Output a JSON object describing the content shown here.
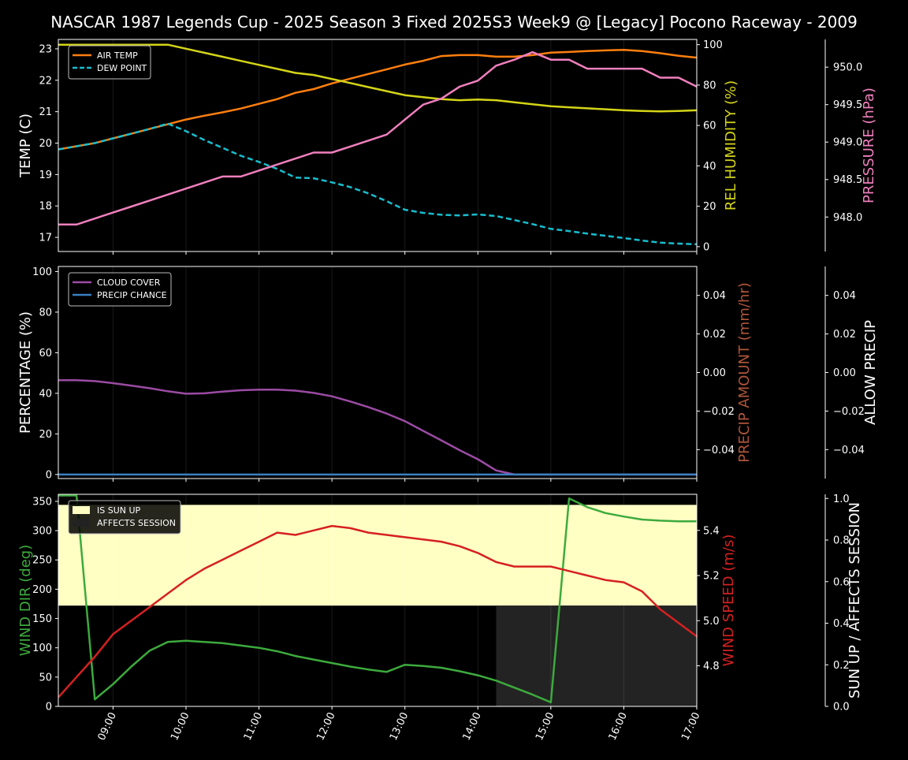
{
  "chart_data": {
    "title": "NASCAR 1987 Legends Cup  - 2025 Season 3 Fixed 2025S3 Week9 @ [Legacy] Pocono Raceway - 2009",
    "x_ticks": [
      "09:00",
      "10:00",
      "11:00",
      "12:00",
      "13:00",
      "14:00",
      "15:00",
      "16:00",
      "17:00"
    ],
    "x_range": [
      8.25,
      17.0
    ],
    "time_hours": [
      8.25,
      8.5,
      8.75,
      9.0,
      9.25,
      9.5,
      9.75,
      10.0,
      10.25,
      10.5,
      10.75,
      11.0,
      11.25,
      11.5,
      11.75,
      12.0,
      12.25,
      12.5,
      12.75,
      13.0,
      13.25,
      13.5,
      13.75,
      14.0,
      14.25,
      14.5,
      14.75,
      15.0,
      15.25,
      15.5,
      15.75,
      16.0,
      16.25,
      16.5,
      16.75,
      17.0
    ],
    "panels": [
      {
        "type": "line",
        "ylabel": "TEMP (C)",
        "ylabel_color": "#ffffff",
        "ylim": [
          16.55,
          23.3
        ],
        "y_ticks": [
          "17",
          "18",
          "19",
          "20",
          "21",
          "22",
          "23"
        ],
        "legend": "top-left",
        "series": [
          {
            "name": "AIR TEMP",
            "color": "#ff7f0e",
            "dash": false,
            "axis": "left",
            "values": [
              19.8,
              19.9,
              20.0,
              20.15,
              20.3,
              20.45,
              20.6,
              20.75,
              20.87,
              20.98,
              21.1,
              21.25,
              21.4,
              21.6,
              21.72,
              21.9,
              22.05,
              22.2,
              22.35,
              22.5,
              22.62,
              22.77,
              22.8,
              22.8,
              22.75,
              22.75,
              22.8,
              22.88,
              22.9,
              22.93,
              22.95,
              22.97,
              22.93,
              22.86,
              22.78,
              22.72
            ]
          },
          {
            "name": "DEW POINT",
            "color": "#17becf",
            "dash": true,
            "axis": "left",
            "values": [
              19.8,
              19.9,
              20.0,
              20.15,
              20.3,
              20.45,
              20.62,
              20.38,
              20.1,
              19.85,
              19.6,
              19.4,
              19.18,
              18.9,
              18.88,
              18.75,
              18.6,
              18.4,
              18.15,
              17.88,
              17.78,
              17.72,
              17.7,
              17.73,
              17.68,
              17.55,
              17.42,
              17.27,
              17.2,
              17.12,
              17.05,
              16.98,
              16.9,
              16.83,
              16.8,
              16.78
            ]
          },
          {
            "name": "REL HUMIDITY",
            "color": "#d4d418",
            "dash": false,
            "axis": "right1",
            "values": [
              100,
              100,
              100,
              100,
              100,
              100,
              100,
              98,
              96,
              94,
              92,
              90,
              88,
              86,
              85,
              83,
              81,
              79,
              77,
              75,
              74,
              73,
              72.5,
              72.8,
              72.5,
              71.5,
              70.5,
              69.5,
              69,
              68.5,
              68,
              67.5,
              67.2,
              67,
              67.2,
              67.5
            ]
          },
          {
            "name": "PRESSURE",
            "color": "#f07fbd",
            "dash": false,
            "axis": "right2",
            "values": [
              947.9,
              947.9,
              947.98,
              948.06,
              948.14,
              948.22,
              948.3,
              948.38,
              948.46,
              948.54,
              948.54,
              948.62,
              948.7,
              948.78,
              948.86,
              948.86,
              948.94,
              949.02,
              949.1,
              949.3,
              949.5,
              949.58,
              949.74,
              949.82,
              950.02,
              950.1,
              950.2,
              950.1,
              950.1,
              949.98,
              949.98,
              949.98,
              949.98,
              949.86,
              949.86,
              949.74
            ]
          }
        ],
        "right_axes": [
          {
            "label": "REL HUMIDITY (%)",
            "color": "#d4d418",
            "ylim": [
              -2.4,
              102.6
            ],
            "ticks": [
              "0",
              "20",
              "40",
              "60",
              "80",
              "100"
            ]
          },
          {
            "label": "PRESSURE (hPa)",
            "color": "#f07fbd",
            "ylim": [
              947.54,
              950.37
            ],
            "ticks": [
              "948.0",
              "948.5",
              "949.0",
              "949.5",
              "950.0"
            ]
          }
        ]
      },
      {
        "type": "line",
        "ylabel": "PERCENTAGE (%)",
        "ylabel_color": "#ffffff",
        "ylim": [
          -2.0,
          102.5
        ],
        "y_ticks": [
          "0",
          "20",
          "40",
          "60",
          "80",
          "100"
        ],
        "legend": "top-left",
        "series": [
          {
            "name": "CLOUD COVER",
            "color": "#9b4ba4",
            "dash": false,
            "axis": "left",
            "values": [
              46.5,
              46.5,
              46,
              45,
              43.8,
              42.5,
              41,
              39.8,
              40,
              40.8,
              41.5,
              41.8,
              41.8,
              41.3,
              40.2,
              38.5,
              36,
              33.2,
              30,
              26.3,
              21.5,
              16.8,
              12,
              7.5,
              2,
              0,
              0,
              0,
              0,
              0,
              0,
              0,
              0,
              0,
              0,
              0
            ]
          },
          {
            "name": "PRECIP CHANCE",
            "color": "#3a7fc2",
            "dash": false,
            "axis": "left",
            "values": [
              0,
              0,
              0,
              0,
              0,
              0,
              0,
              0,
              0,
              0,
              0,
              0,
              0,
              0,
              0,
              0,
              0,
              0,
              0,
              0,
              0,
              0,
              0,
              0,
              0,
              0,
              0,
              0,
              0,
              0,
              0,
              0,
              0,
              0,
              0,
              0
            ]
          }
        ],
        "right_axes": [
          {
            "label": "PRECIP AMOUNT (mm/hr)",
            "color": "#b0553a",
            "ylim": [
              -0.055,
              0.055
            ],
            "ticks": [
              "0.04",
              "0.02",
              "0.00",
              "−0.02",
              "−0.04"
            ]
          },
          {
            "label": "ALLOW PRECIP",
            "color": "#ffffff",
            "ylim": [
              -0.055,
              0.055
            ],
            "ticks": [
              "0.04",
              "0.02",
              "0.00",
              "−0.02",
              "−0.04"
            ]
          }
        ]
      },
      {
        "type": "line",
        "ylabel": "WIND DIR (deg)",
        "ylabel_color": "#3daa3d",
        "ylim": [
          0,
          362
        ],
        "y_ticks": [
          "0",
          "50",
          "100",
          "150",
          "200",
          "250",
          "300",
          "350"
        ],
        "legend": "top-left",
        "legend_items": [
          {
            "name": "IS SUN UP",
            "color": "#ffffc4"
          },
          {
            "name": "AFFECTS SESSION",
            "color": "#222222"
          }
        ],
        "sun_up": {
          "x_start": 8.25,
          "x_end": 17.0,
          "y_start": 172,
          "y_end": 344,
          "color": "#ffffc4"
        },
        "affects_session": {
          "x_start": 14.25,
          "x_end": 17.0,
          "color": "#232323"
        },
        "series": [
          {
            "name": "WIND DIR",
            "color": "#3daa3d",
            "dash": false,
            "axis": "left",
            "values": [
              360,
              360,
              12,
              38,
              68,
              95,
              110,
              112,
              110,
              108,
              104,
              100,
              94,
              86,
              80,
              74,
              68,
              63,
              59,
              71,
              69,
              66,
              60,
              53,
              44,
              32,
              20,
              7,
              355,
              340,
              330,
              324,
              319,
              317,
              316,
              316
            ]
          },
          {
            "name": "WIND SPEED",
            "color": "#d62020",
            "dash": false,
            "axis": "right1",
            "values": [
              4.66,
              4.75,
              4.84,
              4.94,
              5.0,
              5.06,
              5.12,
              5.18,
              5.23,
              5.27,
              5.31,
              5.35,
              5.39,
              5.38,
              5.4,
              5.42,
              5.41,
              5.39,
              5.38,
              5.37,
              5.36,
              5.35,
              5.33,
              5.3,
              5.26,
              5.24,
              5.24,
              5.24,
              5.22,
              5.2,
              5.18,
              5.17,
              5.13,
              5.05,
              4.99,
              4.93
            ]
          }
        ],
        "right_axes": [
          {
            "label": "WIND SPEED (m/s)",
            "color": "#d62020",
            "ylim": [
              4.62,
              5.56
            ],
            "ticks": [
              "4.8",
              "5.0",
              "5.2",
              "5.4"
            ]
          },
          {
            "label": "SUN UP / AFFECTS SESSION",
            "color": "#ffffff",
            "ylim": [
              0,
              1.02
            ],
            "ticks": [
              "0.0",
              "0.2",
              "0.4",
              "0.6",
              "0.8",
              "1.0"
            ]
          }
        ]
      }
    ]
  }
}
